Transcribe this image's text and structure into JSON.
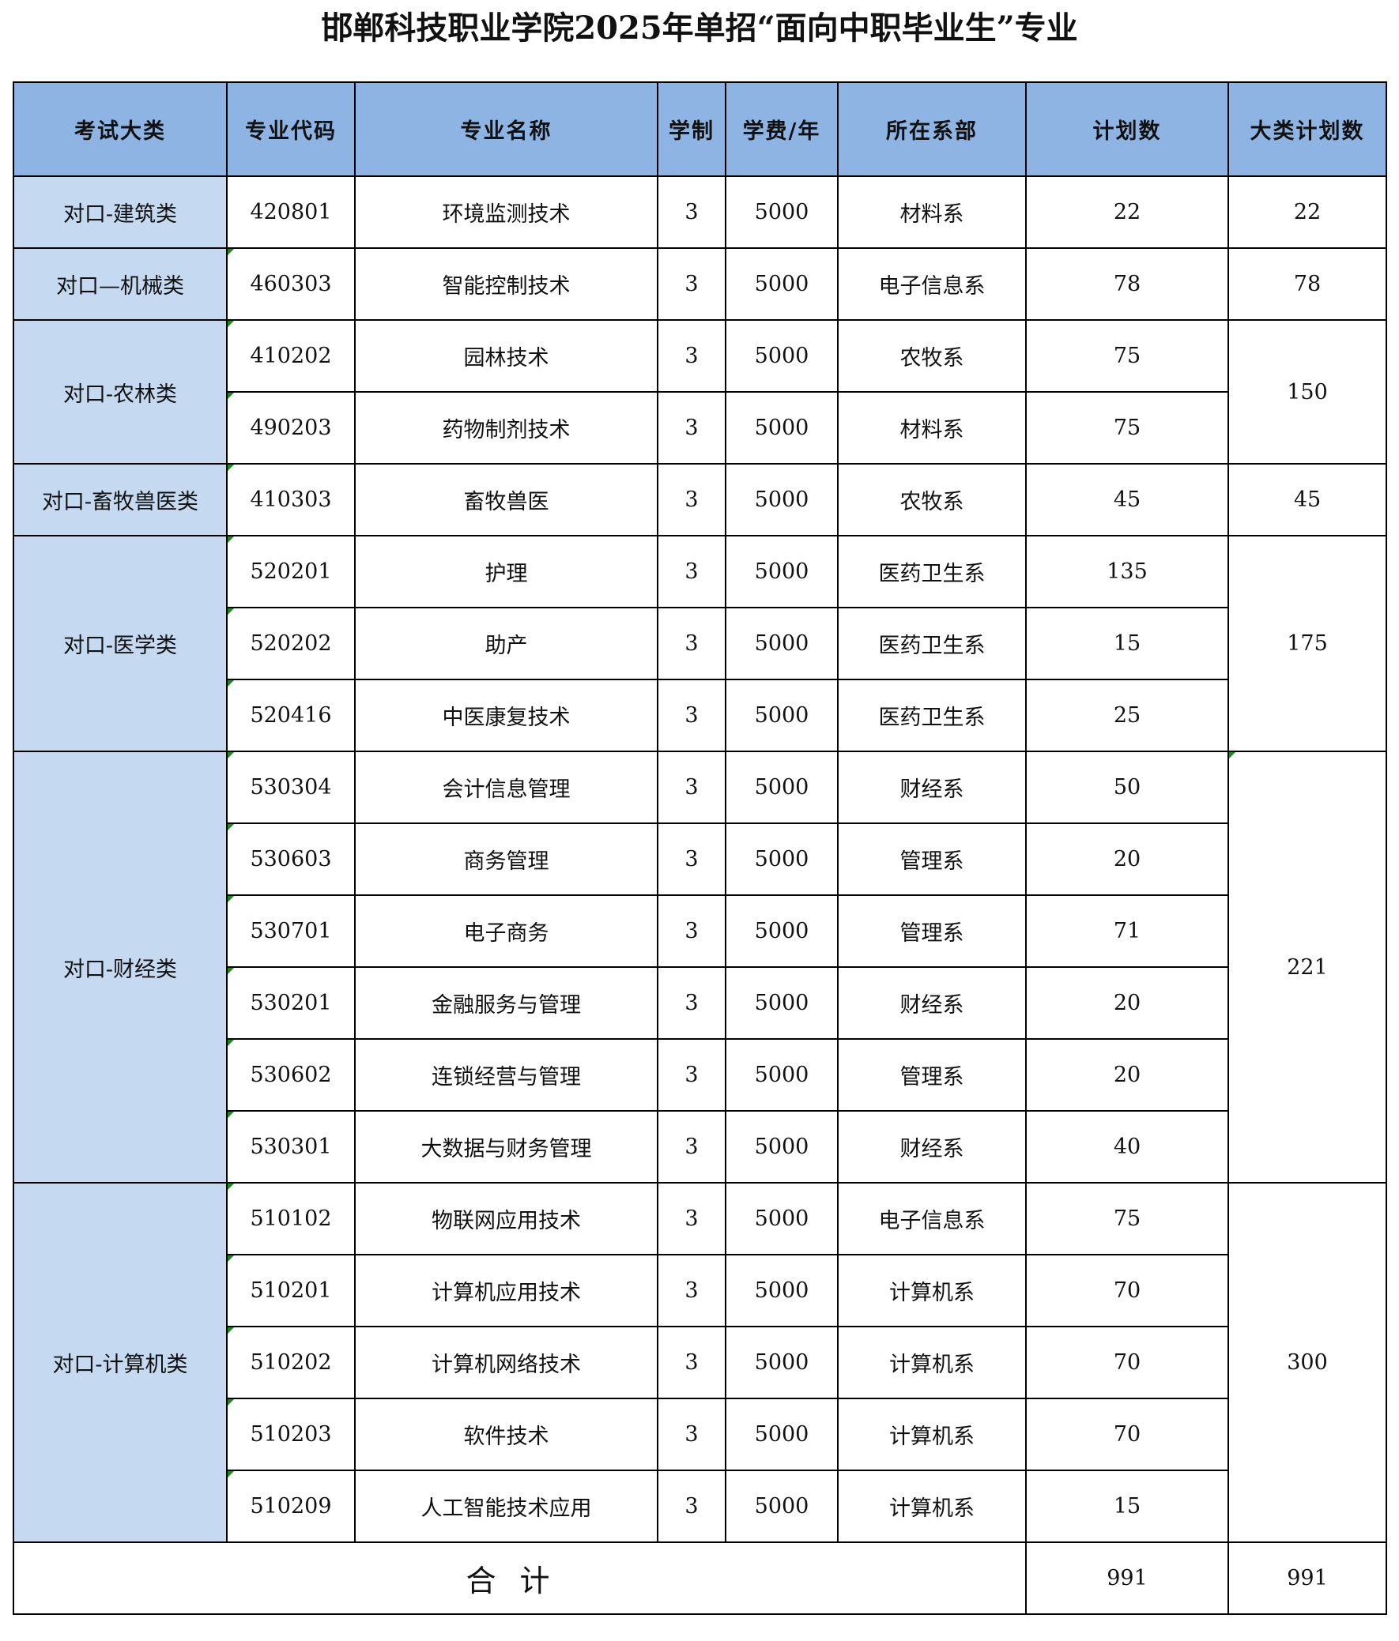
{
  "title": "邯郸科技职业学院2025年单招“面向中职毕业生”专业",
  "headers": [
    "考试大类",
    "专业代码",
    "专业名称",
    "学制",
    "学费/年",
    "所在系部",
    "计划数",
    "大类计划数"
  ],
  "groups": [
    {
      "category": "对口-建筑类",
      "total": "22",
      "rows": [
        [
          "420801",
          "环境监测技术",
          "3",
          "5000",
          "材料系",
          "22"
        ]
      ]
    },
    {
      "category": "对口—机械类",
      "total": "78",
      "rows": [
        [
          "460303",
          "智能控制技术",
          "3",
          "5000",
          "电子信息系",
          "78"
        ]
      ]
    },
    {
      "category": "对口-农林类",
      "total": "150",
      "rows": [
        [
          "410202",
          "园林技术",
          "3",
          "5000",
          "农牧系",
          "75"
        ],
        [
          "490203",
          "药物制剂技术",
          "3",
          "5000",
          "材料系",
          "75"
        ]
      ]
    },
    {
      "category": "对口-畜牧兽医类",
      "total": "45",
      "rows": [
        [
          "410303",
          "畜牧兽医",
          "3",
          "5000",
          "农牧系",
          "45"
        ]
      ]
    },
    {
      "category": "对口-医学类",
      "total": "175",
      "rows": [
        [
          "520201",
          "护理",
          "3",
          "5000",
          "医药卫生系",
          "135"
        ],
        [
          "520202",
          "助产",
          "3",
          "5000",
          "医药卫生系",
          "15"
        ],
        [
          "520416",
          "中医康复技术",
          "3",
          "5000",
          "医药卫生系",
          "25"
        ]
      ]
    },
    {
      "category": "对口-财经类",
      "total": "221",
      "rows": [
        [
          "530304",
          "会计信息管理",
          "3",
          "5000",
          "财经系",
          "50"
        ],
        [
          "530603",
          "商务管理",
          "3",
          "5000",
          "管理系",
          "20"
        ],
        [
          "530701",
          "电子商务",
          "3",
          "5000",
          "管理系",
          "71"
        ],
        [
          "530201",
          "金融服务与管理",
          "3",
          "5000",
          "财经系",
          "20"
        ],
        [
          "530602",
          "连锁经营与管理",
          "3",
          "5000",
          "管理系",
          "20"
        ],
        [
          "530301",
          "大数据与财务管理",
          "3",
          "5000",
          "财经系",
          "40"
        ]
      ]
    },
    {
      "category": "对口-计算机类",
      "total": "300",
      "rows": [
        [
          "510102",
          "物联网应用技术",
          "3",
          "5000",
          "电子信息系",
          "75"
        ],
        [
          "510201",
          "计算机应用技术",
          "3",
          "5000",
          "计算机系",
          "70"
        ],
        [
          "510202",
          "计算机网络技术",
          "3",
          "5000",
          "计算机系",
          "70"
        ],
        [
          "510203",
          "软件技术",
          "3",
          "5000",
          "计算机系",
          "70"
        ],
        [
          "510209",
          "人工智能技术应用",
          "3",
          "5000",
          "计算机系",
          "15"
        ]
      ]
    }
  ],
  "summary": {
    "label": "合计",
    "plan_total": "991",
    "category_total": "991"
  },
  "colors": {
    "header_bg": "#8eb4e3",
    "category_bg": "#c5d9f1",
    "error_marker": "#1a8a1a"
  }
}
